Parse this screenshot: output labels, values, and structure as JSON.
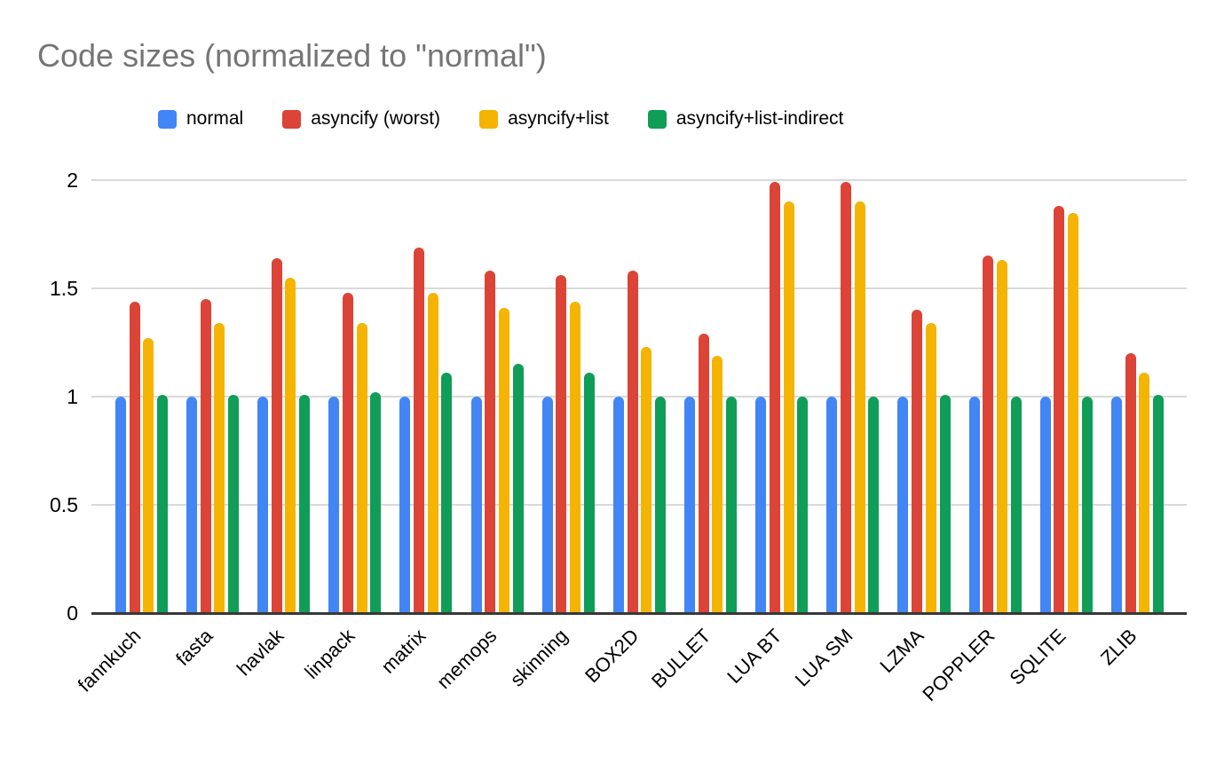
{
  "chart_data": {
    "type": "bar",
    "title": "Code sizes (normalized to \"normal\")",
    "categories": [
      "fannkuch",
      "fasta",
      "havlak",
      "linpack",
      "matrix",
      "memops",
      "skinning",
      "BOX2D",
      "BULLET",
      "LUA BT",
      "LUA SM",
      "LZMA",
      "POPPLER",
      "SQLITE",
      "ZLIB"
    ],
    "series": [
      {
        "name": "normal",
        "color": "#4285F4",
        "values": [
          1.0,
          1.0,
          1.0,
          1.0,
          1.0,
          1.0,
          1.0,
          1.0,
          1.0,
          1.0,
          1.0,
          1.0,
          1.0,
          1.0,
          1.0
        ]
      },
      {
        "name": "asyncify (worst)",
        "color": "#DB4437",
        "values": [
          1.44,
          1.45,
          1.64,
          1.48,
          1.69,
          1.58,
          1.56,
          1.58,
          1.29,
          1.99,
          1.99,
          1.4,
          1.65,
          1.88,
          1.2
        ]
      },
      {
        "name": "asyncify+list",
        "color": "#F4B400",
        "values": [
          1.27,
          1.34,
          1.55,
          1.34,
          1.48,
          1.41,
          1.44,
          1.23,
          1.19,
          1.9,
          1.9,
          1.34,
          1.63,
          1.85,
          1.11
        ]
      },
      {
        "name": "asyncify+list-indirect",
        "color": "#0F9D58",
        "values": [
          1.01,
          1.01,
          1.01,
          1.02,
          1.11,
          1.15,
          1.11,
          1.0,
          1.0,
          1.0,
          1.0,
          1.01,
          1.0,
          1.0,
          1.01
        ]
      }
    ],
    "xlabel": "",
    "ylabel": "",
    "ylim": [
      0,
      2
    ],
    "yticks": [
      "0",
      "0.5",
      "1",
      "1.5",
      "2"
    ],
    "grid": true,
    "legend_position": "top"
  },
  "colors": {
    "background": "#ffffff",
    "title_text": "#757575",
    "gridline": "#d9d9d9",
    "axis_line": "#383838",
    "tick_text": "#000000",
    "legend_text": "#000000"
  }
}
